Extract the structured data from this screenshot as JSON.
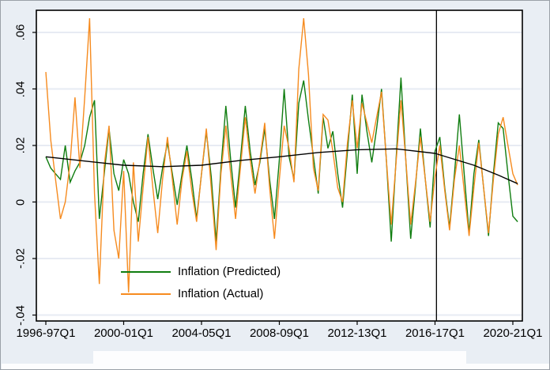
{
  "figure": {
    "background": "#e9eef4",
    "plot_background": "#ffffff",
    "gridline_color": "#e7ebf3",
    "frame_color": "#000000"
  },
  "legend": {
    "items": [
      {
        "label": "Inflation (Predicted)",
        "color": "#107d10"
      },
      {
        "label": "Inflation (Actual)",
        "color": "#f68b1f"
      }
    ]
  },
  "chart_data": {
    "type": "line",
    "title": "",
    "xlabel": "",
    "ylabel": "",
    "x_start": "1996-97Q1",
    "x_frequency": "quarterly",
    "x_tick_labels": [
      "1996-97Q1",
      "2000-01Q1",
      "2004-05Q1",
      "2008-09Q1",
      "2012-13Q1",
      "2016-17Q1",
      "2020-21Q1"
    ],
    "y_tick_labels": [
      ".06",
      ".04",
      ".02",
      "0",
      "-.02",
      "-.04"
    ],
    "y_tick_values": [
      0.06,
      0.04,
      0.02,
      0,
      -0.02,
      -0.04
    ],
    "ylim": [
      -0.042,
      0.068
    ],
    "grid": true,
    "legend_position": "inside-bottom-left",
    "reference_line": {
      "orientation": "vertical",
      "at_label": "2016-17Q1",
      "x_index": 80.3,
      "color": "#000000"
    },
    "series": [
      {
        "name": "Inflation (Predicted)",
        "color": "#107d10",
        "values": [
          0.016,
          0.012,
          0.01,
          0.008,
          0.02,
          0.007,
          0.011,
          0.014,
          0.02,
          0.03,
          0.036,
          -0.006,
          0.01,
          0.026,
          0.01,
          0.004,
          0.015,
          0.01,
          0.0,
          -0.007,
          0.01,
          0.024,
          0.012,
          0.001,
          0.012,
          0.021,
          0.01,
          -0.001,
          0.01,
          0.02,
          0.008,
          -0.006,
          0.01,
          0.025,
          0.009,
          -0.014,
          0.012,
          0.034,
          0.015,
          -0.002,
          0.015,
          0.034,
          0.018,
          0.006,
          0.014,
          0.026,
          0.008,
          -0.006,
          0.015,
          0.04,
          0.016,
          0.008,
          0.035,
          0.043,
          0.029,
          0.016,
          0.003,
          0.03,
          0.019,
          0.025,
          0.01,
          -0.002,
          0.018,
          0.038,
          0.01,
          0.038,
          0.025,
          0.014,
          0.026,
          0.04,
          0.015,
          -0.014,
          0.015,
          0.044,
          0.015,
          -0.013,
          0.006,
          0.026,
          0.008,
          -0.009,
          0.018,
          0.023,
          0.005,
          -0.009,
          0.01,
          0.031,
          0.01,
          -0.011,
          0.01,
          0.022,
          0.005,
          -0.012,
          0.01,
          0.028,
          0.026,
          0.01,
          -0.005,
          -0.007
        ]
      },
      {
        "name": "Inflation (Actual)",
        "color": "#f68b1f",
        "values": [
          0.046,
          0.022,
          0.008,
          -0.006,
          0.0,
          0.014,
          0.037,
          0.012,
          0.037,
          0.065,
          0.003,
          -0.029,
          0.013,
          0.027,
          -0.01,
          -0.02,
          0.011,
          -0.032,
          0.014,
          -0.014,
          0.005,
          0.023,
          0.005,
          -0.011,
          0.008,
          0.023,
          0.008,
          -0.008,
          0.008,
          0.018,
          0.004,
          -0.007,
          0.01,
          0.026,
          0.005,
          -0.017,
          0.01,
          0.027,
          0.01,
          -0.006,
          0.012,
          0.03,
          0.015,
          0.003,
          0.015,
          0.028,
          0.005,
          -0.013,
          0.008,
          0.027,
          0.019,
          0.007,
          0.047,
          0.065,
          0.045,
          0.012,
          0.004,
          0.031,
          0.029,
          0.018,
          0.005,
          0.0,
          0.021,
          0.036,
          0.019,
          0.035,
          0.028,
          0.021,
          0.03,
          0.039,
          0.015,
          -0.008,
          0.014,
          0.036,
          0.015,
          -0.008,
          0.007,
          0.023,
          0.008,
          -0.007,
          0.009,
          0.02,
          0.004,
          -0.01,
          0.008,
          0.02,
          0.004,
          -0.012,
          0.005,
          0.021,
          0.005,
          -0.011,
          0.008,
          0.024,
          0.03,
          0.02,
          0.01,
          0.006
        ]
      },
      {
        "name": "trend",
        "color": "#000000",
        "anchor_indices": [
          0,
          8,
          16,
          24,
          32,
          40,
          48,
          56,
          64,
          72,
          80,
          88,
          93,
          97
        ],
        "anchor_values": [
          0.016,
          0.0145,
          0.013,
          0.0125,
          0.013,
          0.0147,
          0.016,
          0.0175,
          0.0185,
          0.0188,
          0.0172,
          0.013,
          0.0095,
          0.0065
        ]
      }
    ]
  }
}
